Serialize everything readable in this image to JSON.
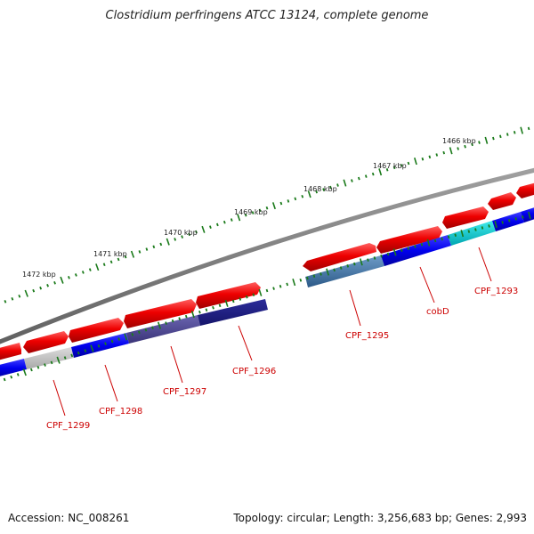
{
  "title": "Clostridium perfringens ATCC 13124, complete genome",
  "footer": {
    "accession": "Accession: NC_008261",
    "summary": "Topology: circular; Length: 3,256,683 bp; Genes: 2,993"
  },
  "kbp_labels": [
    "1466 kbp",
    "1467 kbp",
    "1468 kbp",
    "1469 kbp",
    "1470 kbp",
    "1471 kbp",
    "1472 kbp"
  ],
  "gene_labels": [
    "CPF_1293",
    "cobD",
    "CPF_1295",
    "CPF_1296",
    "CPF_1297",
    "CPF_1298",
    "CPF_1299"
  ],
  "colors": {
    "forward_gene": "#ee0000",
    "backbone": "#7a7a7a",
    "tick": "#1a7a1a",
    "label": "#cc0000"
  }
}
